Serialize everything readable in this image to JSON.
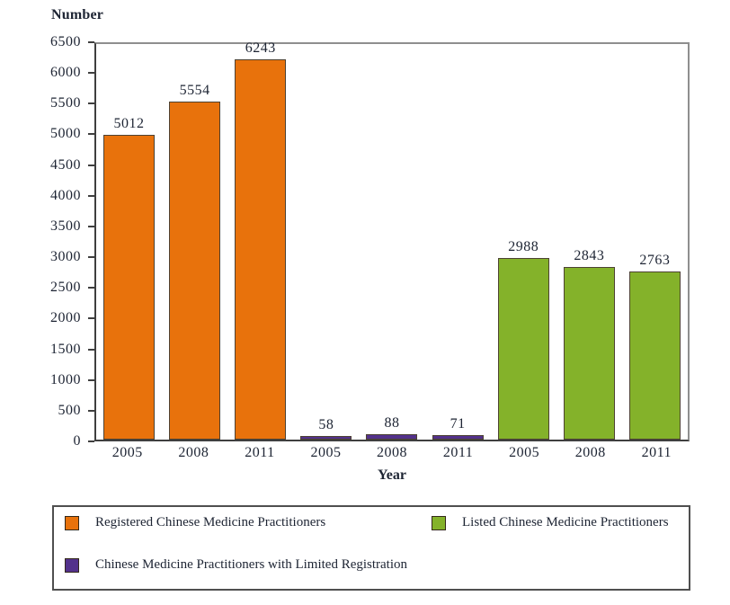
{
  "chart_data": {
    "type": "bar",
    "title": "",
    "ylabel": "Number",
    "xlabel": "Year",
    "ylim": [
      0,
      6500
    ],
    "ytick_step": 500,
    "grid": false,
    "legend_position": "bottom-box",
    "group_categories": [
      "2005",
      "2008",
      "2011"
    ],
    "series": [
      {
        "key": "registered",
        "name": "Registered Chinese Medicine Practitioners",
        "color": "#E8720C",
        "values": [
          5012,
          5554,
          6243
        ]
      },
      {
        "key": "limited",
        "name": "Chinese Medicine Practitioners with Limited Registration",
        "color": "#53318B",
        "values": [
          58,
          88,
          71
        ]
      },
      {
        "key": "listed",
        "name": "Listed Chinese Medicine Practitioners",
        "color": "#84B22A",
        "values": [
          2988,
          2843,
          2763
        ]
      }
    ]
  },
  "legend": {
    "items": [
      {
        "label": "Registered Chinese Medicine Practitioners",
        "color": "#E8720C"
      },
      {
        "label": "Listed Chinese Medicine Practitioners",
        "color": "#84B22A"
      },
      {
        "label": "Chinese Medicine Practitioners with Limited Registration",
        "color": "#53318B"
      }
    ]
  }
}
